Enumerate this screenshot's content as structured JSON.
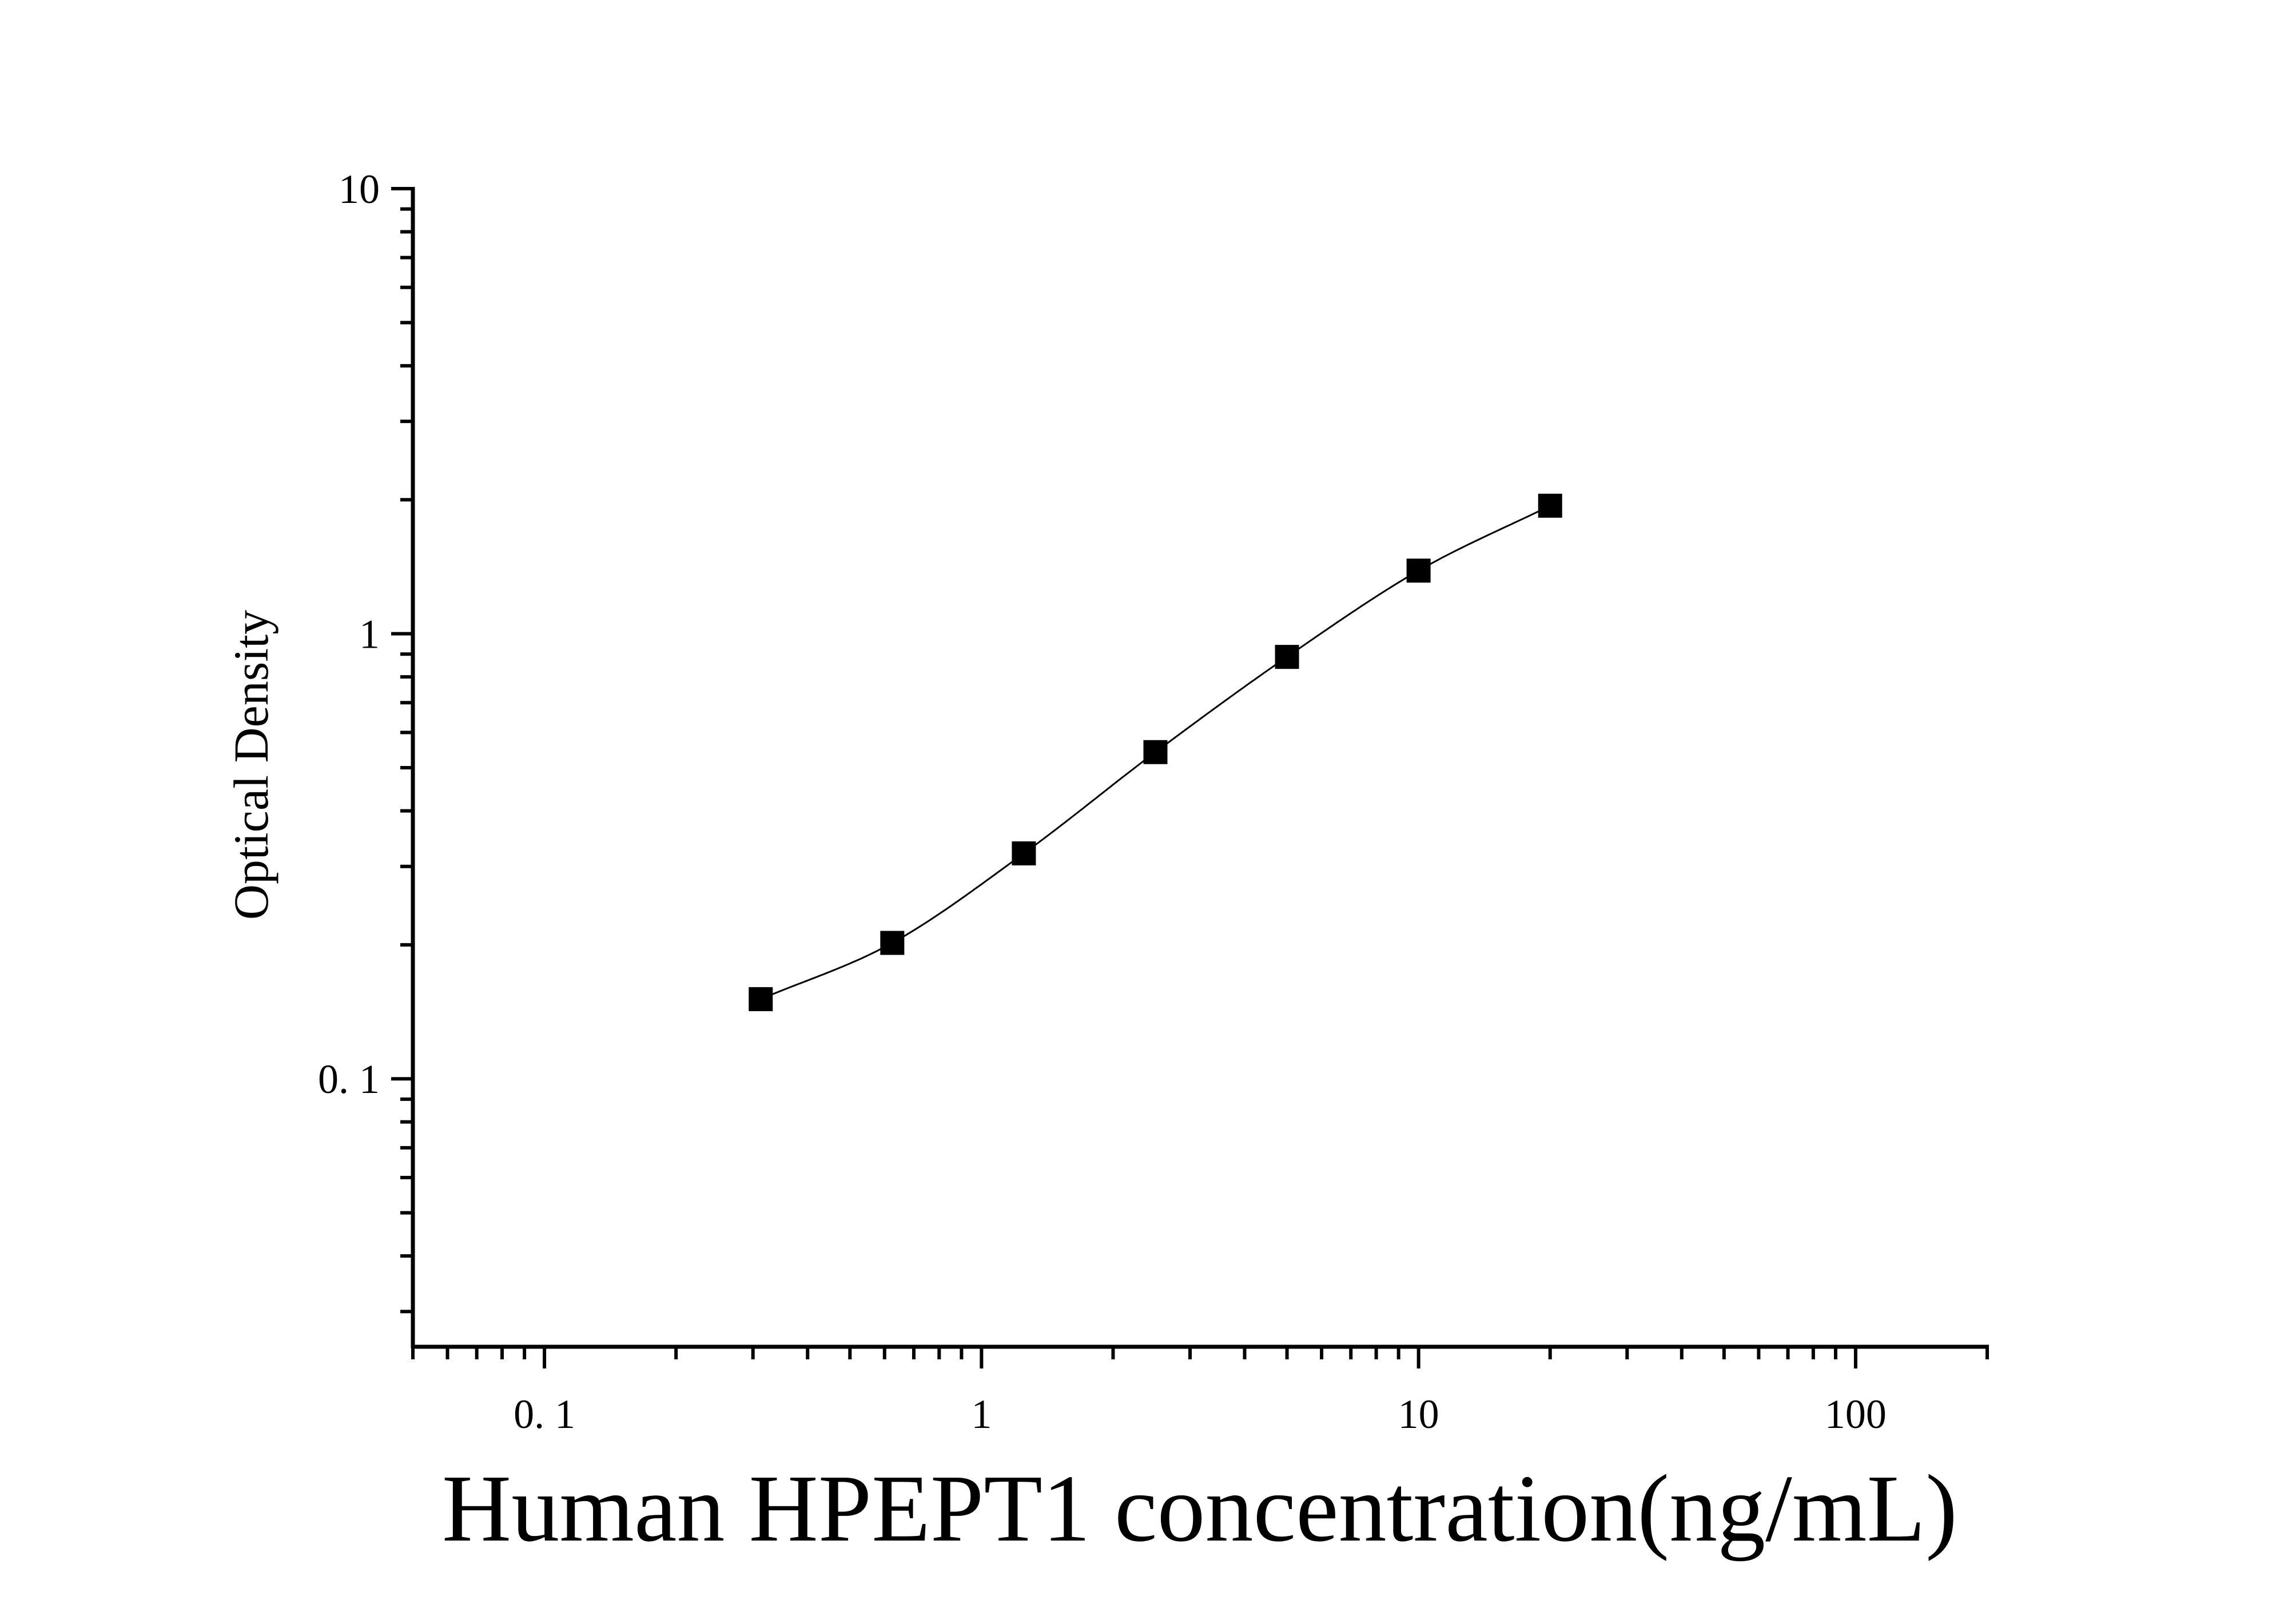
{
  "chart_data": {
    "type": "scatter",
    "title": "",
    "xlabel": "Human HPEPT1 concentration(ng/mL)",
    "ylabel": "Optical Density",
    "xscale": "log",
    "yscale": "log",
    "xlim": [
      0.05,
      200
    ],
    "ylim": [
      0.025,
      10
    ],
    "x_tick_labels": [
      {
        "value": 0.1,
        "label": "0. 1"
      },
      {
        "value": 1,
        "label": "1"
      },
      {
        "value": 10,
        "label": "10"
      },
      {
        "value": 100,
        "label": "100"
      }
    ],
    "y_tick_labels": [
      {
        "value": 0.1,
        "label": "0. 1"
      },
      {
        "value": 1,
        "label": "1"
      },
      {
        "value": 10,
        "label": "10"
      }
    ],
    "grid": false,
    "legend": "none",
    "series": [
      {
        "marker": "square",
        "color": "#000000",
        "fit_line": true,
        "points": [
          {
            "x": 0.3125,
            "y": 0.151
          },
          {
            "x": 0.625,
            "y": 0.202
          },
          {
            "x": 1.25,
            "y": 0.321
          },
          {
            "x": 2.5,
            "y": 0.542
          },
          {
            "x": 5,
            "y": 0.887
          },
          {
            "x": 10,
            "y": 1.386
          },
          {
            "x": 20,
            "y": 1.939
          }
        ]
      }
    ]
  }
}
